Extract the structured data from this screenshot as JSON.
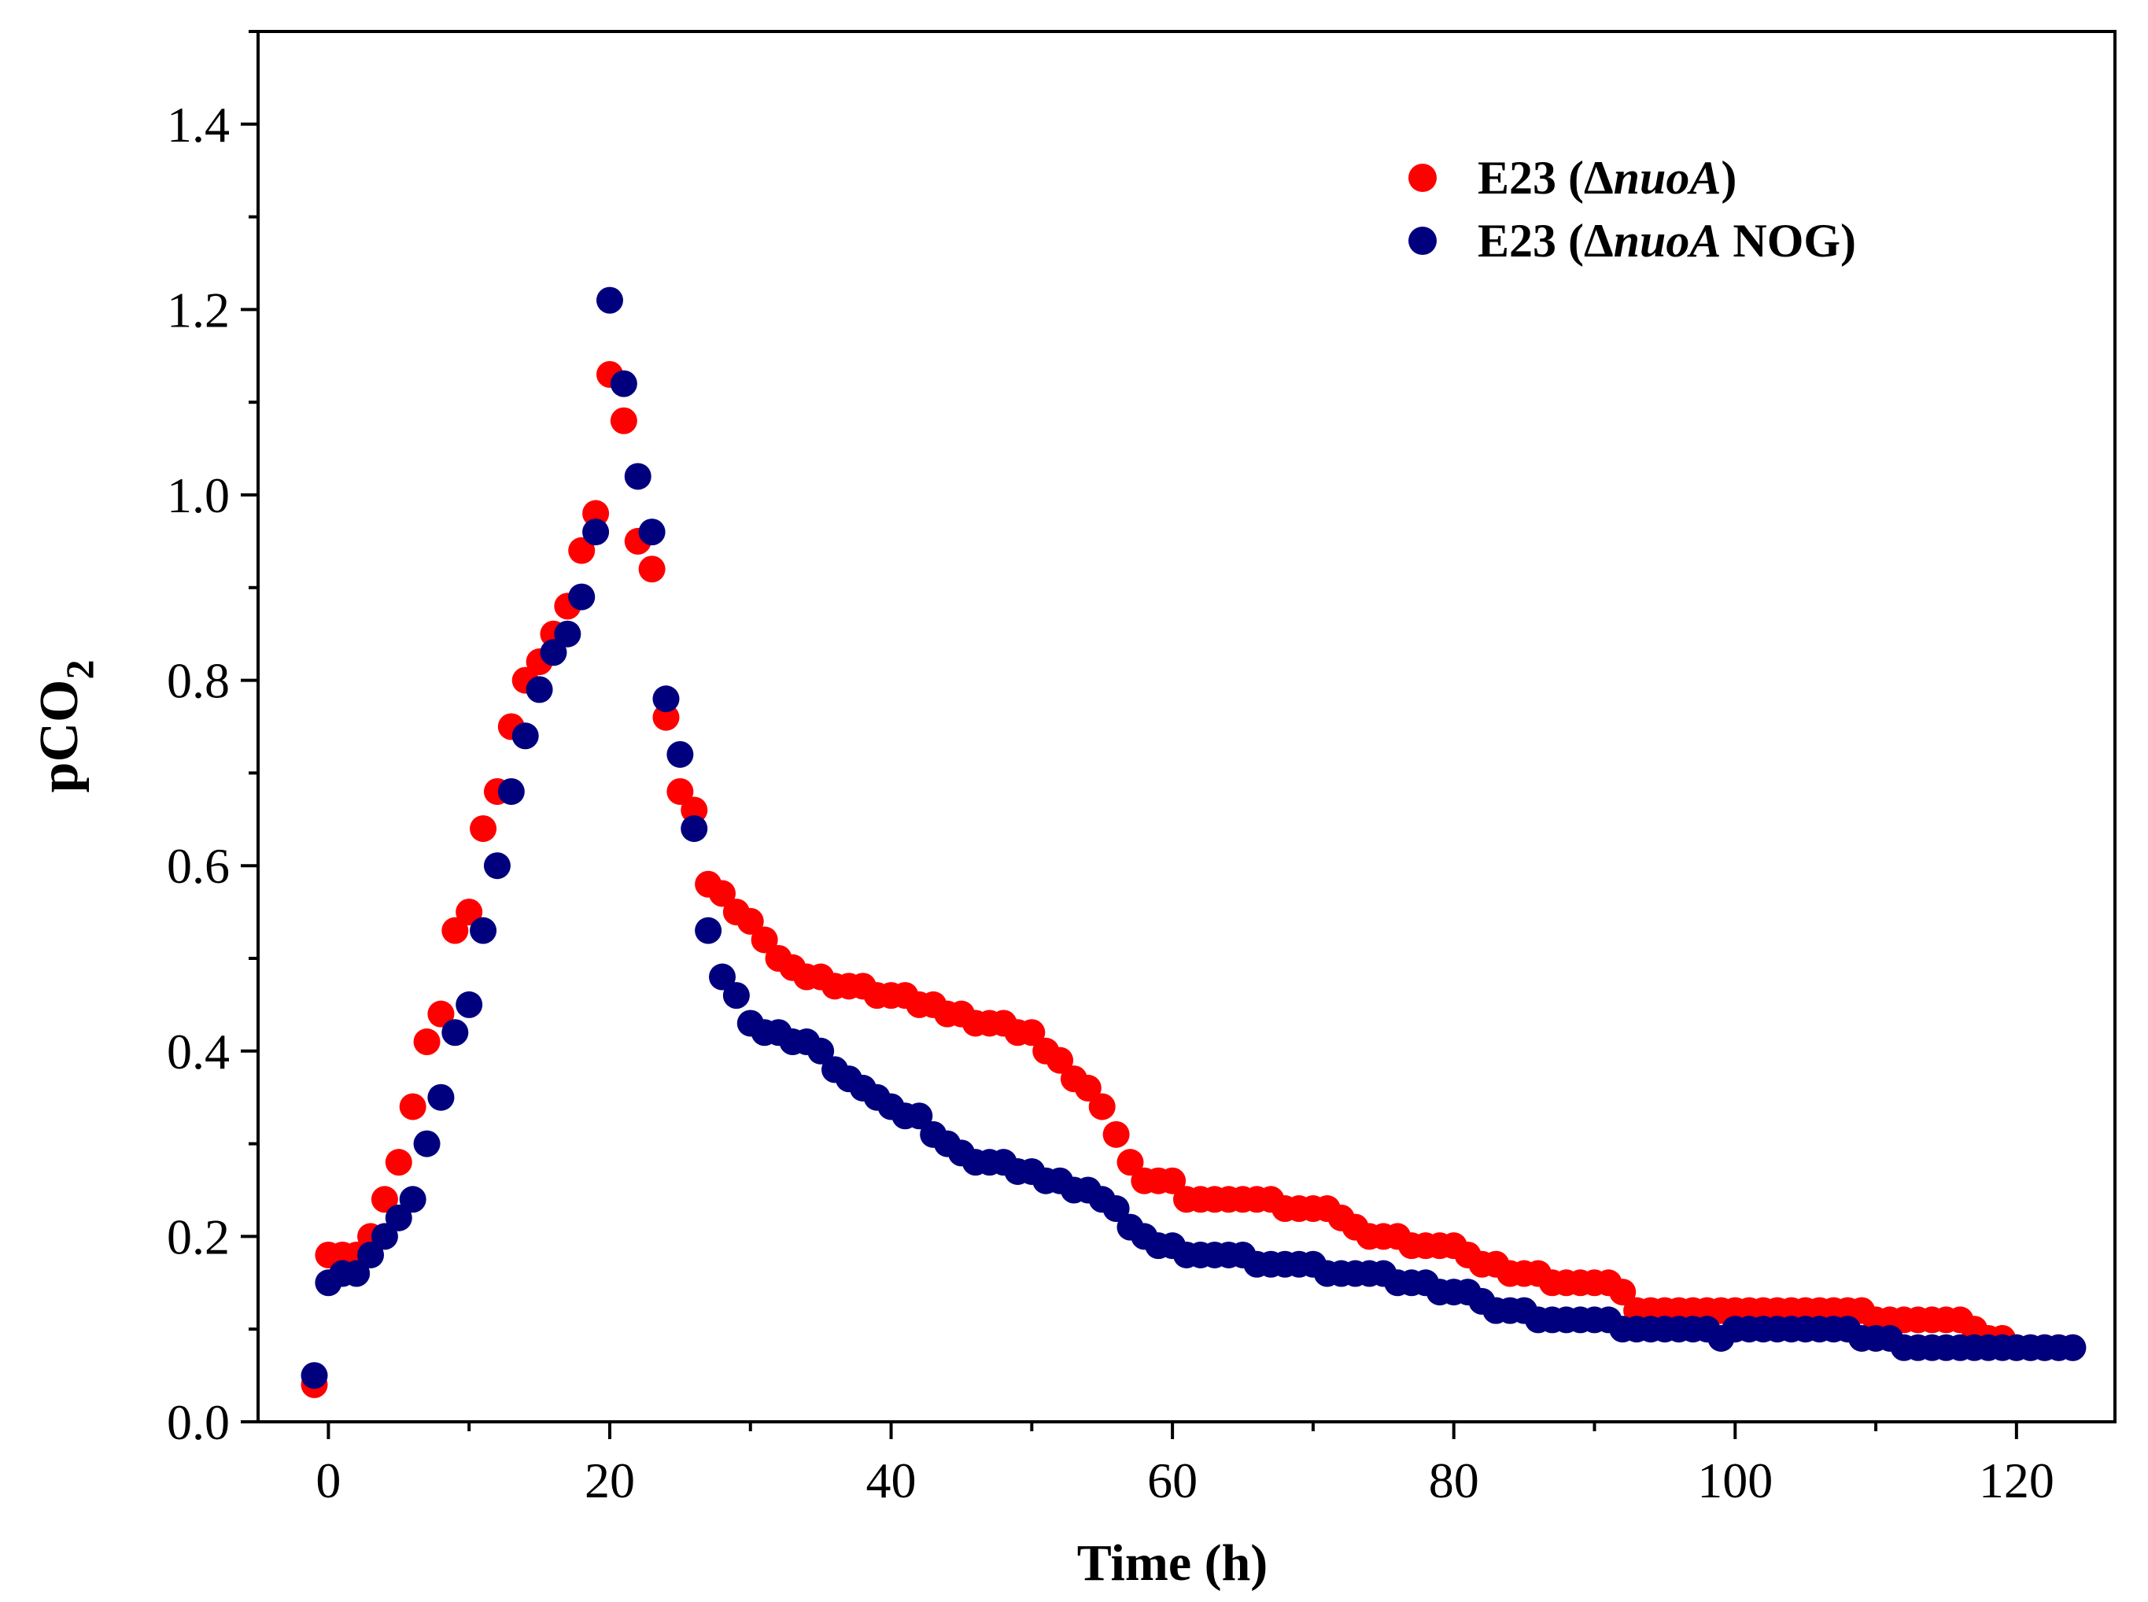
{
  "chart_data": {
    "type": "scatter",
    "title": "",
    "xlabel": "Time (h)",
    "ylabel": {
      "main": "pCO",
      "subscript": "2"
    },
    "xlim": [
      -5,
      127
    ],
    "ylim": [
      0,
      1.5
    ],
    "xticks": [
      0,
      20,
      40,
      60,
      80,
      100,
      120
    ],
    "xtick_labels": [
      "0",
      "20",
      "40",
      "60",
      "80",
      "100",
      "120"
    ],
    "xminor_step": 10,
    "yticks": [
      0,
      0.2,
      0.4,
      0.6,
      0.8,
      1.0,
      1.2,
      1.4
    ],
    "ytick_labels": [
      "0.0",
      "0.2",
      "0.4",
      "0.6",
      "0.8",
      "1.0",
      "1.2",
      "1.4"
    ],
    "yminor_step": 0.1,
    "grid": false,
    "legend_position": "top-right",
    "series": [
      {
        "name": "E23 (ΔnuoA)",
        "label_parts": [
          {
            "text": "E23 (",
            "italic": false
          },
          {
            "text": "Δ",
            "italic": false
          },
          {
            "text": "nuoA",
            "italic": true
          },
          {
            "text": ")",
            "italic": false
          }
        ],
        "color": "#ff0000",
        "x": [
          -1,
          0,
          1,
          2,
          3,
          4,
          5,
          6,
          7,
          8,
          9,
          10,
          11,
          12,
          13,
          14,
          15,
          16,
          17,
          18,
          19,
          20,
          21,
          22,
          23,
          24,
          25,
          26,
          27,
          28,
          29,
          30,
          31,
          32,
          33,
          34,
          35,
          36,
          37,
          38,
          39,
          40,
          41,
          42,
          43,
          44,
          45,
          46,
          47,
          48,
          49,
          50,
          51,
          52,
          53,
          54,
          55,
          56,
          57,
          58,
          59,
          60,
          61,
          62,
          63,
          64,
          65,
          66,
          67,
          68,
          69,
          70,
          71,
          72,
          73,
          74,
          75,
          76,
          77,
          78,
          79,
          80,
          81,
          82,
          83,
          84,
          85,
          86,
          87,
          88,
          89,
          90,
          91,
          92,
          93,
          94,
          95,
          96,
          97,
          98,
          99,
          100,
          101,
          102,
          103,
          104,
          105,
          106,
          107,
          108,
          109,
          110,
          111,
          112,
          113,
          114,
          115,
          116,
          117,
          118,
          119,
          120,
          121,
          122,
          123,
          124
        ],
        "values": [
          0.04,
          0.18,
          0.18,
          0.18,
          0.2,
          0.24,
          0.28,
          0.34,
          0.41,
          0.44,
          0.53,
          0.55,
          0.64,
          0.68,
          0.75,
          0.8,
          0.82,
          0.85,
          0.88,
          0.94,
          0.98,
          1.13,
          1.08,
          0.95,
          0.92,
          0.76,
          0.68,
          0.66,
          0.58,
          0.57,
          0.55,
          0.54,
          0.52,
          0.5,
          0.49,
          0.48,
          0.48,
          0.47,
          0.47,
          0.47,
          0.46,
          0.46,
          0.46,
          0.45,
          0.45,
          0.44,
          0.44,
          0.43,
          0.43,
          0.43,
          0.42,
          0.42,
          0.4,
          0.39,
          0.37,
          0.36,
          0.34,
          0.31,
          0.28,
          0.26,
          0.26,
          0.26,
          0.24,
          0.24,
          0.24,
          0.24,
          0.24,
          0.24,
          0.24,
          0.23,
          0.23,
          0.23,
          0.23,
          0.22,
          0.21,
          0.2,
          0.2,
          0.2,
          0.19,
          0.19,
          0.19,
          0.19,
          0.18,
          0.17,
          0.17,
          0.16,
          0.16,
          0.16,
          0.15,
          0.15,
          0.15,
          0.15,
          0.15,
          0.14,
          0.12,
          0.12,
          0.12,
          0.12,
          0.12,
          0.12,
          0.12,
          0.12,
          0.12,
          0.12,
          0.12,
          0.12,
          0.12,
          0.12,
          0.12,
          0.12,
          0.12,
          0.11,
          0.11,
          0.11,
          0.11,
          0.11,
          0.11,
          0.11,
          0.1,
          0.09,
          0.09,
          0.08,
          0.08,
          0.08,
          0.08,
          0.08
        ]
      },
      {
        "name": "E23 (ΔnuoA NOG)",
        "label_parts": [
          {
            "text": "E23 (",
            "italic": false
          },
          {
            "text": "Δ",
            "italic": false
          },
          {
            "text": "nuoA",
            "italic": true
          },
          {
            "text": " NOG)",
            "italic": false
          }
        ],
        "color": "#00007f",
        "x": [
          -1,
          0,
          1,
          2,
          3,
          4,
          5,
          6,
          7,
          8,
          9,
          10,
          11,
          12,
          13,
          14,
          15,
          16,
          17,
          18,
          19,
          20,
          21,
          22,
          23,
          24,
          25,
          26,
          27,
          28,
          29,
          30,
          31,
          32,
          33,
          34,
          35,
          36,
          37,
          38,
          39,
          40,
          41,
          42,
          43,
          44,
          45,
          46,
          47,
          48,
          49,
          50,
          51,
          52,
          53,
          54,
          55,
          56,
          57,
          58,
          59,
          60,
          61,
          62,
          63,
          64,
          65,
          66,
          67,
          68,
          69,
          70,
          71,
          72,
          73,
          74,
          75,
          76,
          77,
          78,
          79,
          80,
          81,
          82,
          83,
          84,
          85,
          86,
          87,
          88,
          89,
          90,
          91,
          92,
          93,
          94,
          95,
          96,
          97,
          98,
          99,
          100,
          101,
          102,
          103,
          104,
          105,
          106,
          107,
          108,
          109,
          110,
          111,
          112,
          113,
          114,
          115,
          116,
          117,
          118,
          119,
          120,
          121,
          122,
          123,
          124
        ],
        "values": [
          0.05,
          0.15,
          0.16,
          0.16,
          0.18,
          0.2,
          0.22,
          0.24,
          0.3,
          0.35,
          0.42,
          0.45,
          0.53,
          0.6,
          0.68,
          0.74,
          0.79,
          0.83,
          0.85,
          0.89,
          0.96,
          1.21,
          1.12,
          1.02,
          0.96,
          0.78,
          0.72,
          0.64,
          0.53,
          0.48,
          0.46,
          0.43,
          0.42,
          0.42,
          0.41,
          0.41,
          0.4,
          0.38,
          0.37,
          0.36,
          0.35,
          0.34,
          0.33,
          0.33,
          0.31,
          0.3,
          0.29,
          0.28,
          0.28,
          0.28,
          0.27,
          0.27,
          0.26,
          0.26,
          0.25,
          0.25,
          0.24,
          0.23,
          0.21,
          0.2,
          0.19,
          0.19,
          0.18,
          0.18,
          0.18,
          0.18,
          0.18,
          0.17,
          0.17,
          0.17,
          0.17,
          0.17,
          0.16,
          0.16,
          0.16,
          0.16,
          0.16,
          0.15,
          0.15,
          0.15,
          0.14,
          0.14,
          0.14,
          0.13,
          0.12,
          0.12,
          0.12,
          0.11,
          0.11,
          0.11,
          0.11,
          0.11,
          0.11,
          0.1,
          0.1,
          0.1,
          0.1,
          0.1,
          0.1,
          0.1,
          0.09,
          0.1,
          0.1,
          0.1,
          0.1,
          0.1,
          0.1,
          0.1,
          0.1,
          0.1,
          0.09,
          0.09,
          0.09,
          0.08,
          0.08,
          0.08,
          0.08,
          0.08,
          0.08,
          0.08,
          0.08,
          0.08,
          0.08,
          0.08,
          0.08,
          0.08
        ]
      }
    ]
  }
}
